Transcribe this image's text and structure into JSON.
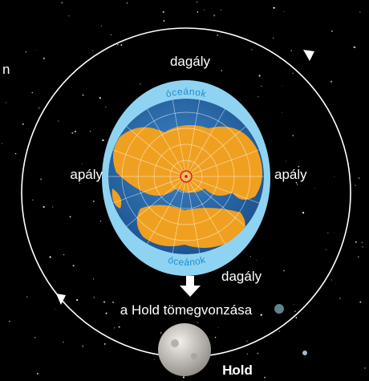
{
  "labels": {
    "edge": "n",
    "top_tide": "dagály",
    "top_ocean": "óceánok",
    "left_ebb": "apály",
    "right_ebb": "apály",
    "bottom_ocean": "óceánok",
    "bottom_tide": "dagály",
    "gravity": "a Hold tömegvonzása",
    "moon": "Hold"
  }
}
